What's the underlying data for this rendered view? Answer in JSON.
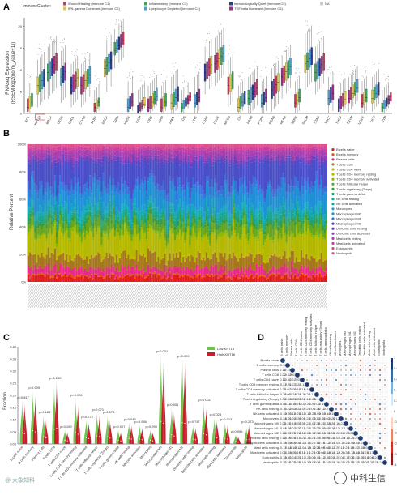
{
  "panels": {
    "a": "A",
    "b": "B",
    "c": "C",
    "d": "D"
  },
  "chart_data": [
    {
      "panel": "A",
      "type": "box",
      "legend_title": "ImmuneCluster:",
      "legend_placement": "top",
      "series": [
        {
          "name": "Wound Healing (Immune C1)",
          "color": "#c23b5a"
        },
        {
          "name": "IFN-gamma Dominant (Immune C2)",
          "color": "#d9c84a"
        },
        {
          "name": "Inflammatory (Immune C3)",
          "color": "#3aa65c"
        },
        {
          "name": "Lymphocyte Depleted (Immune C4)",
          "color": "#4a9fd1"
        },
        {
          "name": "Immunologically Quiet (Immune C5)",
          "color": "#2b3a8f"
        },
        {
          "name": "TGF-beta Dominant (Immune C6)",
          "color": "#9a2f86"
        },
        {
          "name": "NA",
          "color": "#cccccc"
        }
      ],
      "ylabel": "RNAseq Expression\n(RSEM log2(norm_value+1))",
      "ylim": [
        0,
        22
      ],
      "yticks": [
        0,
        5,
        10,
        15,
        20
      ],
      "highlight_category": "KRT18",
      "categories": [
        "ACC",
        "KRT18",
        "BRCA",
        "CESC",
        "CHOL",
        "COAD",
        "DLBC",
        "ESCA",
        "GBM",
        "HNSC",
        "KICH",
        "KIRC",
        "KIRP",
        "LAML",
        "LGG",
        "LIHC",
        "LUAD",
        "LUSC",
        "MESO",
        "OV",
        "PAAD",
        "PCPG",
        "PRAD",
        "READ",
        "SARC",
        "SKCM",
        "STAD",
        "TGCT",
        "THCA",
        "THYM",
        "UCEC",
        "UCS",
        "UVM"
      ],
      "medians": [
        2,
        7,
        10,
        9,
        7,
        7,
        2,
        11,
        15,
        2,
        1,
        2,
        2,
        3,
        2,
        3,
        10,
        12,
        7,
        2,
        4,
        3,
        6,
        9,
        3,
        12,
        10,
        4,
        2,
        4,
        3,
        4,
        2
      ],
      "q1": [
        1,
        5,
        8,
        7,
        5,
        5,
        1,
        9,
        14,
        1,
        0.5,
        1,
        1,
        1.5,
        1,
        2,
        8,
        10,
        5,
        1,
        2.5,
        2,
        4,
        7,
        2,
        10,
        8,
        2.5,
        1,
        3,
        2,
        3,
        1
      ],
      "q3": [
        4,
        9,
        12,
        11,
        9,
        9,
        3,
        13,
        17,
        4,
        2.5,
        4,
        4,
        5,
        3,
        5,
        12,
        14,
        9,
        4,
        6,
        5,
        8,
        11,
        5,
        14,
        12,
        6,
        4,
        6,
        5,
        6,
        3
      ],
      "whisker_low": [
        0,
        2,
        4,
        3,
        2,
        2,
        0,
        5,
        11,
        0,
        0,
        0,
        0,
        0,
        0,
        0,
        5,
        7,
        2,
        0,
        0,
        0,
        1,
        4,
        0,
        6,
        5,
        0,
        0,
        1,
        0,
        1,
        0
      ],
      "whisker_high": [
        7,
        13,
        16,
        15,
        12,
        12,
        6,
        17,
        20,
        8,
        6,
        7,
        7,
        9,
        6,
        9,
        16,
        18,
        13,
        7,
        9,
        8,
        11,
        14,
        8,
        19,
        16,
        9,
        7,
        9,
        8,
        9,
        6
      ]
    },
    {
      "panel": "B",
      "type": "stacked_bar",
      "ylabel": "Relative Percent",
      "ylim": [
        0,
        100
      ],
      "yticks": [
        "0%",
        "20%",
        "40%",
        "60%",
        "80%",
        "100%"
      ],
      "legend_placement": "right",
      "sample_count": 180,
      "series": [
        {
          "name": "B cells naive",
          "color": "#e41a1c",
          "mean": 4
        },
        {
          "name": "B cells memory",
          "color": "#d95f02",
          "mean": 1
        },
        {
          "name": "Plasma cells",
          "color": "#e7298a",
          "mean": 5
        },
        {
          "name": "T cells CD8",
          "color": "#a6761d",
          "mean": 8
        },
        {
          "name": "T cells CD4 naive",
          "color": "#c8b400",
          "mean": 1
        },
        {
          "name": "T cells CD4 memory resting",
          "color": "#b5b800",
          "mean": 14
        },
        {
          "name": "T cells CD4 memory activated",
          "color": "#8fb800",
          "mean": 2
        },
        {
          "name": "T cells follicular helper",
          "color": "#66a61e",
          "mean": 6
        },
        {
          "name": "T cells regulatory (Tregs)",
          "color": "#3a9b3a",
          "mean": 3
        },
        {
          "name": "T cells gamma delta",
          "color": "#1b9e77",
          "mean": 1
        },
        {
          "name": "NK cells resting",
          "color": "#17a68a",
          "mean": 3
        },
        {
          "name": "NK cells activated",
          "color": "#10a8a0",
          "mean": 2
        },
        {
          "name": "Monocytes",
          "color": "#1aa7c0",
          "mean": 4
        },
        {
          "name": "Macrophages M0",
          "color": "#1f8fd6",
          "mean": 12
        },
        {
          "name": "Macrophages M1",
          "color": "#3b6fd9",
          "mean": 5
        },
        {
          "name": "Macrophages M2",
          "color": "#4a4fc9",
          "mean": 16
        },
        {
          "name": "Dendritic cells resting",
          "color": "#6a3fc0",
          "mean": 2
        },
        {
          "name": "Dendritic cells activated",
          "color": "#8a3fb8",
          "mean": 2
        },
        {
          "name": "Mast cells resting",
          "color": "#a63fb0",
          "mean": 4
        },
        {
          "name": "Mast cells activated",
          "color": "#c43fa0",
          "mean": 2
        },
        {
          "name": "Eosinophils",
          "color": "#d4459a",
          "mean": 1
        },
        {
          "name": "Neutrophils",
          "color": "#e0508c",
          "mean": 2
        }
      ]
    },
    {
      "panel": "C",
      "type": "violin",
      "ylabel": "Fraction",
      "ylim": [
        0,
        0.4
      ],
      "yticks": [
        "0.00",
        "0.05",
        "0.10",
        "0.15",
        "0.20",
        "0.25",
        "0.30",
        "0.35",
        "0.40"
      ],
      "legend_placement": "top-right",
      "series": [
        {
          "name": "Low-KRT18",
          "color": "#6cc24a"
        },
        {
          "name": "High-KRT18",
          "color": "#c81e2a"
        }
      ],
      "categories": [
        "B cells naive",
        "B cells memory",
        "Plasma cells",
        "T cells CD8",
        "T cells CD4 naive",
        "T cells CD4 memory resting",
        "T cells CD4 memory activated",
        "T cells follicular helper",
        "T cells regulatory (Tregs)",
        "T cells gamma delta",
        "NK cells resting",
        "NK cells activated",
        "Monocytes",
        "Macrophages M0",
        "Macrophages M1",
        "Macrophages M2",
        "Dendritic cells resting",
        "Dendritic cells activated",
        "Mast cells resting",
        "Mast cells activated",
        "Eosinophils",
        "Neutrophils"
      ],
      "pvalues": [
        "p=0.817",
        "p=0.909",
        "p=0.183",
        "p=0.249",
        "p=0.159",
        "p=0.090",
        "p=0.272",
        "p=0.071",
        "p=0.071",
        "p=0.007",
        "p=0.043",
        "p=0.986",
        "p=0.990",
        "p<0.001",
        "p=0.001",
        "p=0.020",
        "p=0.747",
        "p=0.001",
        "p=0.023",
        "p=0.013",
        "p=0.096",
        "p=0.273"
      ],
      "max_low": [
        0.18,
        0.22,
        0.12,
        0.24,
        0.06,
        0.19,
        0.1,
        0.13,
        0.12,
        0.06,
        0.09,
        0.08,
        0.06,
        0.37,
        0.15,
        0.35,
        0.08,
        0.17,
        0.11,
        0.09,
        0.04,
        0.07
      ],
      "max_high": [
        0.17,
        0.2,
        0.1,
        0.26,
        0.05,
        0.16,
        0.09,
        0.12,
        0.1,
        0.05,
        0.08,
        0.07,
        0.05,
        0.34,
        0.13,
        0.34,
        0.07,
        0.15,
        0.1,
        0.08,
        0.03,
        0.08
      ]
    },
    {
      "panel": "D",
      "type": "heatmap",
      "colorbar_ticks": [
        "1",
        "0.8",
        "0.6",
        "0.4",
        "0.2",
        "0",
        "-0.2",
        "-0.4",
        "-0.6",
        "-0.8",
        "-1"
      ],
      "labels": [
        "B cells naive",
        "B cells memory",
        "Plasma cells",
        "T cells CD8",
        "T cells CD4 naive",
        "T cells CD4 memory resting",
        "T cells CD4 memory activated",
        "T cells follicular helper",
        "T cells regulatory (Tregs)",
        "T cells gamma delta",
        "NK cells resting",
        "NK cells activated",
        "Monocytes",
        "Macrophages M0",
        "Macrophages M1",
        "Macrophages M2",
        "Dendritic cells resting",
        "Dendritic cells activated",
        "Mast cells resting",
        "Mast cells activated",
        "Eosinophils",
        "Neutrophils"
      ]
    }
  ],
  "watermark": {
    "left": "@ 大象知科",
    "right": "中科生信"
  },
  "colors": {
    "high": "#1f3a6b",
    "low": "#b2182b",
    "grid": "#dddddd"
  }
}
